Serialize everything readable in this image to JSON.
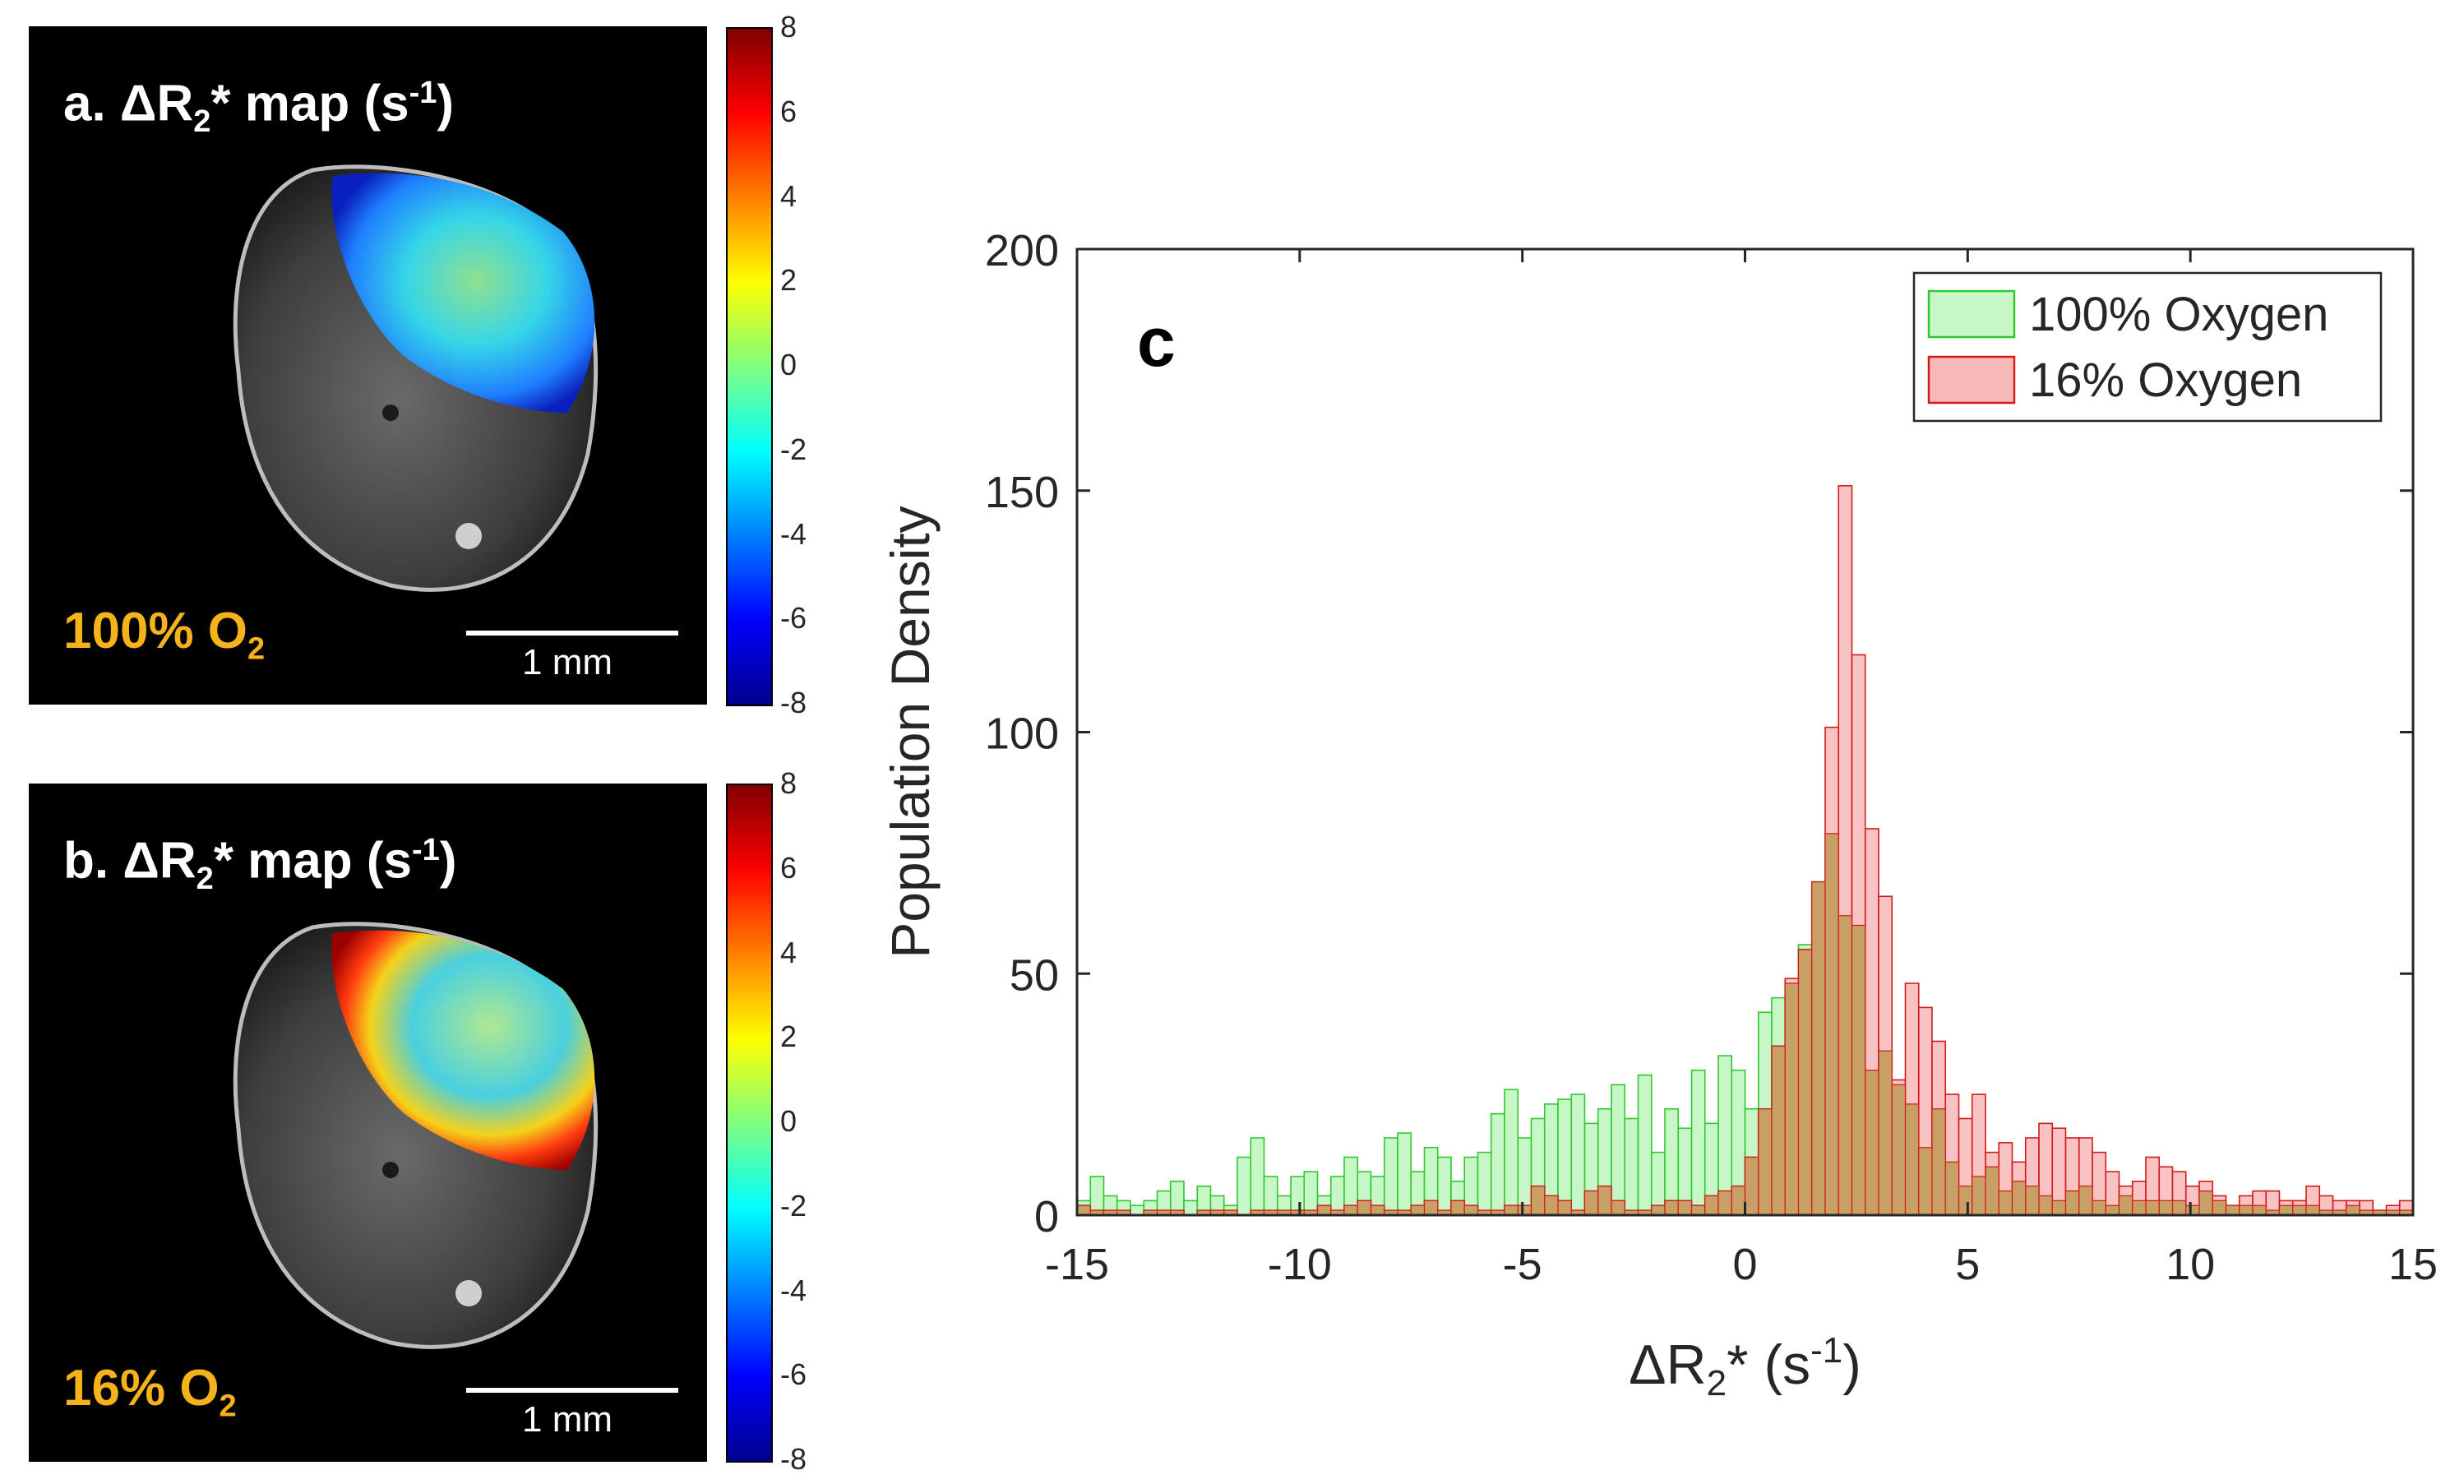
{
  "panel_a": {
    "title_main": "a. ΔR",
    "title_sub": "2",
    "title_mid": "* map (s",
    "title_sup": "-1",
    "title_end": ")",
    "o2_main": "100% O",
    "o2_sub": "2",
    "scale_bar": "1 mm",
    "colorbar_ticks": [
      "8",
      "6",
      "4",
      "2",
      "0",
      "-2",
      "-4",
      "-6",
      "-8"
    ]
  },
  "panel_b": {
    "title_main": "b. ΔR",
    "title_sub": "2",
    "title_mid": "* map (s",
    "title_sup": "-1",
    "title_end": ")",
    "o2_main": "16% O",
    "o2_sub": "2",
    "scale_bar": "1 mm",
    "colorbar_ticks": [
      "8",
      "6",
      "4",
      "2",
      "0",
      "-2",
      "-4",
      "-6",
      "-8"
    ]
  },
  "colors": {
    "green_fill": "#c7f7c7",
    "green_edge": "#2fc92f",
    "red_fill": "#f9b8b8",
    "red_edge": "#d11a1a",
    "overlap_fill": "#c8a066",
    "o2_label": "#f5b21a"
  },
  "chart_data": {
    "type": "histogram",
    "panel_label": "c",
    "xlabel_main": "ΔR",
    "xlabel_sub": "2",
    "xlabel_mid": "* (s",
    "xlabel_sup": "-1",
    "xlabel_end": ")",
    "ylabel": "Population Density",
    "xlim": [
      -15,
      15
    ],
    "ylim": [
      0,
      200
    ],
    "xticks": [
      "-15",
      "-10",
      "-5",
      "0",
      "5",
      "10",
      "15"
    ],
    "yticks": [
      "0",
      "50",
      "100",
      "150",
      "200"
    ],
    "bin_width": 0.3,
    "legend_position": "top-right",
    "series": [
      {
        "name": "100% Oxygen",
        "values": [
          3,
          8,
          4,
          3,
          2,
          3,
          5,
          7,
          3,
          6,
          4,
          2,
          12,
          16,
          8,
          4,
          8,
          9,
          4,
          8,
          12,
          9,
          8,
          16,
          17,
          9,
          14,
          12,
          7,
          12,
          13,
          21,
          26,
          16,
          20,
          23,
          24,
          25,
          19,
          22,
          27,
          20,
          29,
          13,
          22,
          18,
          30,
          19,
          33,
          30,
          22,
          42,
          45,
          48,
          56,
          69,
          79,
          62,
          60,
          30,
          34,
          27,
          23,
          14,
          22,
          11,
          6,
          8,
          10,
          5,
          7,
          6,
          4,
          3,
          5,
          6,
          3,
          2,
          4,
          3,
          3,
          3,
          3,
          2,
          5,
          3,
          2,
          2,
          2,
          1,
          2,
          2,
          2,
          1,
          1,
          2,
          1,
          1,
          1,
          1
        ]
      },
      {
        "name": "16% Oxygen",
        "values": [
          2,
          1,
          1,
          1,
          0,
          1,
          1,
          1,
          0,
          1,
          1,
          1,
          0,
          1,
          1,
          1,
          1,
          1,
          2,
          1,
          2,
          3,
          2,
          1,
          1,
          2,
          3,
          1,
          3,
          2,
          1,
          1,
          2,
          2,
          6,
          4,
          3,
          1,
          5,
          6,
          3,
          1,
          1,
          2,
          3,
          3,
          2,
          4,
          5,
          6,
          12,
          22,
          35,
          49,
          55,
          69,
          101,
          151,
          116,
          80,
          66,
          28,
          48,
          43,
          36,
          25,
          20,
          25,
          13,
          15,
          11,
          16,
          19,
          18,
          16,
          16,
          13,
          9,
          6,
          7,
          12,
          10,
          9,
          6,
          7,
          4,
          2,
          4,
          5,
          5,
          3,
          3,
          6,
          4,
          3,
          3,
          3,
          1,
          2,
          3
        ]
      }
    ]
  }
}
